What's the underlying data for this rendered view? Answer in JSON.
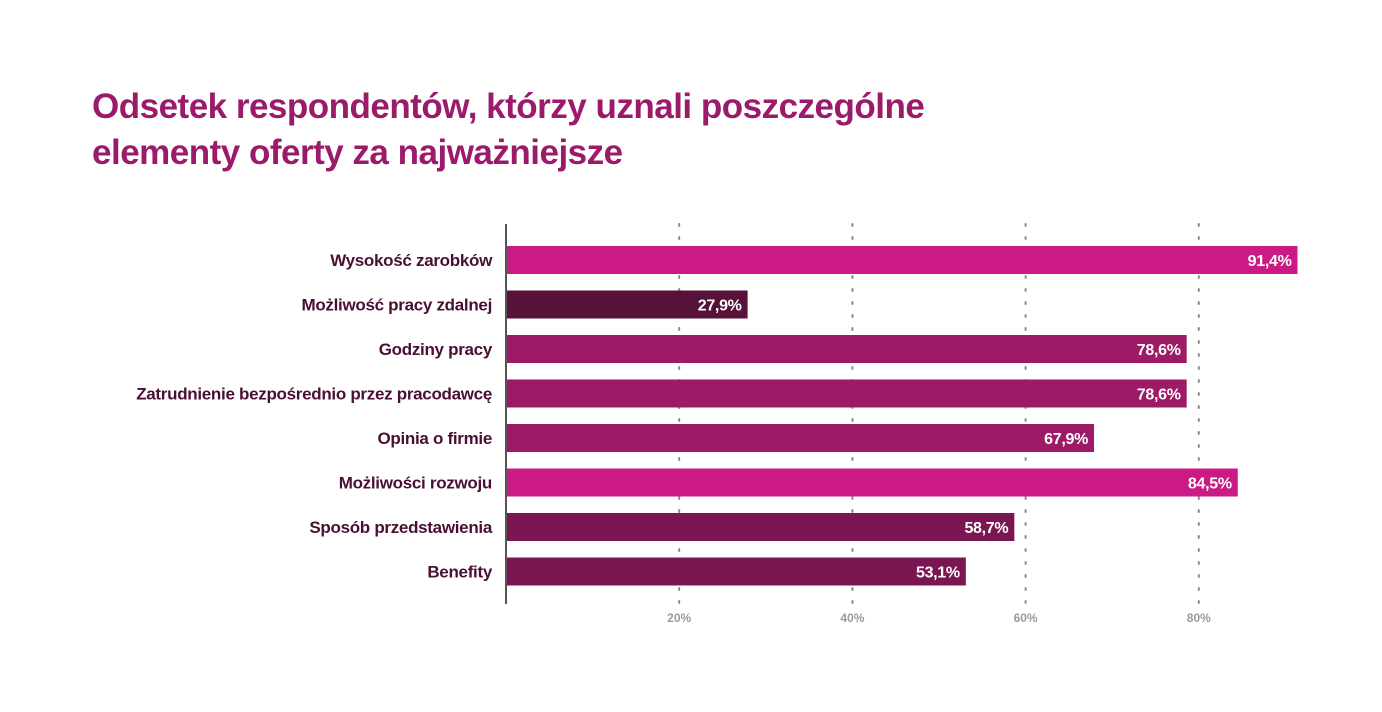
{
  "colors": {
    "title": "#9b1a6a",
    "category_text": "#4a1034",
    "value_text": "#ffffff",
    "axis": "#555555",
    "grid": "#8a8a8a",
    "tick_text": "#9a9a9a"
  },
  "chart_data": {
    "type": "bar",
    "orientation": "horizontal",
    "title_lines": [
      "Odsetek respondentów, którzy uznali poszczególne",
      "elementy oferty za najważniejsze"
    ],
    "categories": [
      "Wysokość zarobków",
      "Możliwość pracy zdalnej",
      "Godziny pracy",
      "Zatrudnienie bezpośrednio przez pracodawcę",
      "Opinia o firmie",
      "Możliwości rozwoju",
      "Sposób przedstawienia",
      "Benefity"
    ],
    "values": [
      91.4,
      27.9,
      78.6,
      78.6,
      67.9,
      84.5,
      58.7,
      53.1
    ],
    "value_labels": [
      "91,4%",
      "27,9%",
      "78,6%",
      "78,6%",
      "67,9%",
      "84,5%",
      "58,7%",
      "53,1%"
    ],
    "bar_colors": [
      "#cc1a85",
      "#561239",
      "#9c1a66",
      "#9c1a66",
      "#9c1a66",
      "#cc1a85",
      "#7a1752",
      "#7a1752"
    ],
    "x_ticks": [
      20,
      40,
      60,
      80
    ],
    "x_tick_labels": [
      "20%",
      "40%",
      "60%",
      "80%"
    ],
    "xlim": [
      0,
      100
    ],
    "grid": "vertical-dotted",
    "legend": "none"
  }
}
